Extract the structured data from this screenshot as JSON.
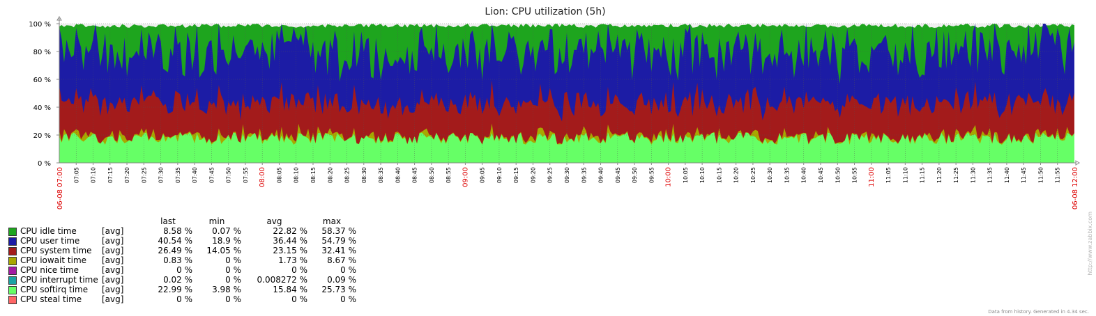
{
  "chart_data": {
    "type": "area",
    "stacked": true,
    "title": "Lion: CPU utilization (5h)",
    "ylim": [
      0,
      100
    ],
    "y_ticks": [
      "0 %",
      "20 %",
      "40 %",
      "60 %",
      "80 %",
      "100 %"
    ],
    "x_range": [
      "06-08 07:00",
      "06-08 12:00"
    ],
    "x_ticks": [
      "07:05",
      "07:10",
      "07:15",
      "07:20",
      "07:25",
      "07:30",
      "07:35",
      "07:40",
      "07:45",
      "07:50",
      "07:55",
      "08:00",
      "08:05",
      "08:10",
      "08:15",
      "08:20",
      "08:25",
      "08:30",
      "08:35",
      "08:40",
      "08:45",
      "08:50",
      "08:55",
      "09:00",
      "09:05",
      "09:10",
      "09:15",
      "09:20",
      "09:25",
      "09:30",
      "09:35",
      "09:40",
      "09:45",
      "09:50",
      "09:55",
      "10:00",
      "10:05",
      "10:10",
      "10:15",
      "10:20",
      "10:25",
      "10:30",
      "10:35",
      "10:40",
      "10:45",
      "10:50",
      "10:55",
      "11:00",
      "11:05",
      "11:10",
      "11:15",
      "11:20",
      "11:25",
      "11:30",
      "11:35",
      "11:40",
      "11:45",
      "11:50",
      "11:55"
    ],
    "x_edge_labels": [
      "06-08 07:00",
      "06-08 12:00"
    ],
    "hour_ticks": [
      "08:00",
      "09:00",
      "10:00",
      "11:00"
    ],
    "series_bottom_to_top": [
      {
        "name": "CPU softirq time",
        "color": "#66ff66",
        "profile_avg": 15.84
      },
      {
        "name": "CPU iowait time",
        "color": "#a8a800",
        "profile_avg": 1.73
      },
      {
        "name": "CPU system time",
        "color": "#a31b1b",
        "profile_avg": 23.15
      },
      {
        "name": "CPU user time",
        "color": "#1c1ca5",
        "profile_avg": 36.44
      },
      {
        "name": "CPU idle time",
        "color": "#1ea51e",
        "profile_avg": 22.82
      }
    ],
    "legend": {
      "headers": [
        "last",
        "min",
        "avg",
        "max"
      ],
      "rows": [
        {
          "name": "CPU idle time",
          "func": "[avg]",
          "last": "8.58 %",
          "min": "0.07 %",
          "avg": "22.82 %",
          "max": "58.37 %",
          "color": "#1ea51e"
        },
        {
          "name": "CPU user time",
          "func": "[avg]",
          "last": "40.54 %",
          "min": "18.9 %",
          "avg": "36.44 %",
          "max": "54.79 %",
          "color": "#1c1ca5"
        },
        {
          "name": "CPU system time",
          "func": "[avg]",
          "last": "26.49 %",
          "min": "14.05 %",
          "avg": "23.15 %",
          "max": "32.41 %",
          "color": "#a31b1b"
        },
        {
          "name": "CPU iowait time",
          "func": "[avg]",
          "last": "0.83 %",
          "min": "0 %",
          "avg": "1.73 %",
          "max": "8.67 %",
          "color": "#a8a800"
        },
        {
          "name": "CPU nice time",
          "func": "[avg]",
          "last": "0 %",
          "min": "0 %",
          "avg": "0 %",
          "max": "0 %",
          "color": "#a31ba3"
        },
        {
          "name": "CPU interrupt time",
          "func": "[avg]",
          "last": "0.02 %",
          "min": "0 %",
          "avg": "0.008272 %",
          "max": "0.09 %",
          "color": "#1ba3a3"
        },
        {
          "name": "CPU softirq time",
          "func": "[avg]",
          "last": "22.99 %",
          "min": "3.98 %",
          "avg": "15.84 %",
          "max": "25.73 %",
          "color": "#66ff66"
        },
        {
          "name": "CPU steal time",
          "func": "[avg]",
          "last": "0 %",
          "min": "0 %",
          "avg": "0 %",
          "max": "0 %",
          "color": "#ff6666"
        }
      ]
    }
  },
  "footer": "Data from history. Generated in 4.34 sec.",
  "watermark": "http://www.zabbix.com"
}
